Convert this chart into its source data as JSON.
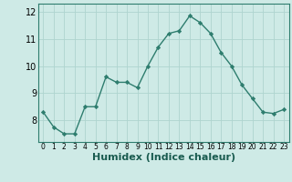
{
  "x": [
    0,
    1,
    2,
    3,
    4,
    5,
    6,
    7,
    8,
    9,
    10,
    11,
    12,
    13,
    14,
    15,
    16,
    17,
    18,
    19,
    20,
    21,
    22,
    23
  ],
  "y": [
    8.3,
    7.75,
    7.5,
    7.5,
    8.5,
    8.5,
    9.6,
    9.4,
    9.4,
    9.2,
    10.0,
    10.7,
    11.2,
    11.3,
    11.85,
    11.6,
    11.2,
    10.5,
    10.0,
    9.3,
    8.8,
    8.3,
    8.25,
    8.4
  ],
  "xlim": [
    -0.5,
    23.5
  ],
  "ylim": [
    7.2,
    12.3
  ],
  "yticks": [
    8,
    9,
    10,
    11,
    12
  ],
  "xticks": [
    0,
    1,
    2,
    3,
    4,
    5,
    6,
    7,
    8,
    9,
    10,
    11,
    12,
    13,
    14,
    15,
    16,
    17,
    18,
    19,
    20,
    21,
    22,
    23
  ],
  "xlabel": "Humidex (Indice chaleur)",
  "line_color": "#2e7d6e",
  "marker_color": "#2e7d6e",
  "bg_color": "#ceeae6",
  "grid_color": "#aed4cf",
  "xlabel_fontsize": 8,
  "ytick_fontsize": 7,
  "xtick_fontsize": 5.5
}
